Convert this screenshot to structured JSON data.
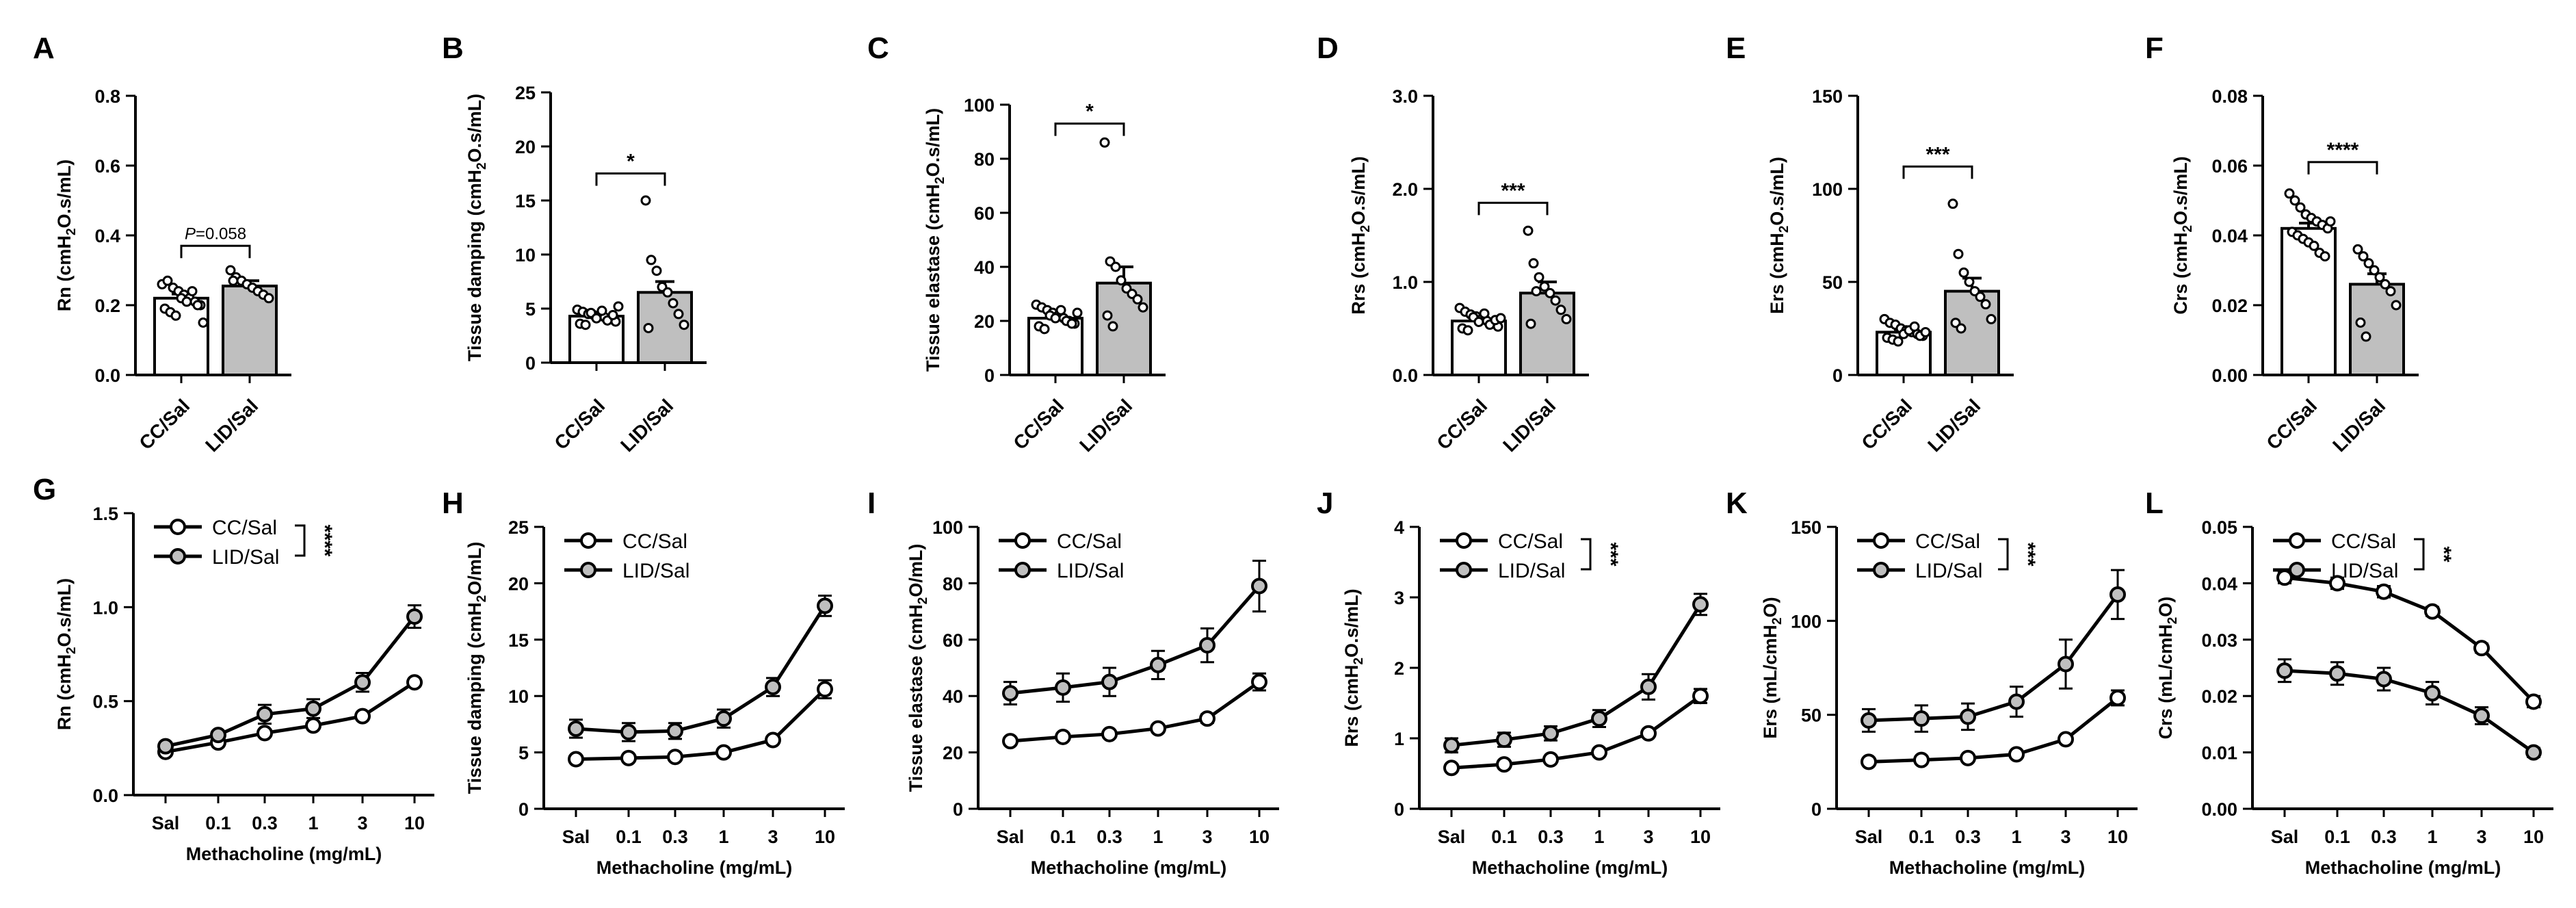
{
  "chart_data": [
    {
      "type": "bar",
      "panel": "A",
      "ylabel": "Rn (cmH2O.s/mL)",
      "ylim": [
        0,
        0.8
      ],
      "ticks": [
        "0.0",
        "0.2",
        "0.4",
        "0.6",
        "0.8"
      ],
      "categories": [
        "CC/Sal",
        "LID/Sal"
      ],
      "values": [
        0.22,
        0.255
      ],
      "sem": [
        0.012,
        0.015
      ],
      "fills": [
        "#ffffff",
        "#bfbfbf"
      ],
      "points": [
        [
          0.26,
          0.27,
          0.25,
          0.24,
          0.23,
          0.22,
          0.21,
          0.2,
          0.19,
          0.18,
          0.17,
          0.22,
          0.21,
          0.24,
          0.2,
          0.15
        ],
        [
          0.3,
          0.28,
          0.27,
          0.26,
          0.25,
          0.24,
          0.23,
          0.22,
          0.27
        ]
      ],
      "annotation": {
        "label": "P",
        "value_text": "=0.058",
        "level": 0.37
      }
    },
    {
      "type": "bar",
      "panel": "B",
      "ylabel": "Tissue damping (cmH2O.s/mL)",
      "ylim": [
        0,
        25
      ],
      "ticks": [
        "0",
        "5",
        "10",
        "15",
        "20",
        "25"
      ],
      "categories": [
        "CC/Sal",
        "LID/Sal"
      ],
      "values": [
        4.3,
        6.5
      ],
      "sem": [
        0.2,
        1.0
      ],
      "fills": [
        "#ffffff",
        "#bfbfbf"
      ],
      "points": [
        [
          4.9,
          4.7,
          4.5,
          4.4,
          4.3,
          4.2,
          4.0,
          3.8,
          3.6,
          3.5,
          4.6,
          4.1,
          4.8,
          3.9,
          4.4,
          5.2
        ],
        [
          15.0,
          9.5,
          8.5,
          7.0,
          6.5,
          5.5,
          4.5,
          3.5,
          3.2
        ]
      ],
      "annotation": {
        "label": "*",
        "level": 17.5
      }
    },
    {
      "type": "bar",
      "panel": "C",
      "ylabel": "Tissue elastase (cmH2O.s/mL)",
      "ylim": [
        0,
        100
      ],
      "ticks": [
        "0",
        "20",
        "40",
        "60",
        "80",
        "100"
      ],
      "categories": [
        "CC/Sal",
        "LID/Sal"
      ],
      "values": [
        21,
        34
      ],
      "sem": [
        1,
        6
      ],
      "fills": [
        "#ffffff",
        "#bfbfbf"
      ],
      "points": [
        [
          26,
          25,
          24,
          23,
          22,
          21,
          20,
          19,
          18,
          17,
          22,
          21,
          24,
          20,
          19,
          23
        ],
        [
          86,
          42,
          40,
          35,
          32,
          30,
          28,
          25,
          22,
          18
        ]
      ],
      "annotation": {
        "label": "*",
        "level": 93
      }
    },
    {
      "type": "bar",
      "panel": "D",
      "ylabel": "Rrs (cmH2O.s/mL)",
      "ylim": [
        0,
        3.0
      ],
      "ticks": [
        "0.0",
        "1.0",
        "2.0",
        "3.0"
      ],
      "categories": [
        "CC/Sal",
        "LID/Sal"
      ],
      "values": [
        0.58,
        0.88
      ],
      "sem": [
        0.03,
        0.12
      ],
      "fills": [
        "#ffffff",
        "#bfbfbf"
      ],
      "points": [
        [
          0.72,
          0.68,
          0.65,
          0.63,
          0.6,
          0.58,
          0.55,
          0.52,
          0.5,
          0.48,
          0.62,
          0.57,
          0.66,
          0.54,
          0.59,
          0.61
        ],
        [
          1.55,
          1.2,
          1.05,
          0.95,
          0.88,
          0.8,
          0.7,
          0.6,
          0.55,
          0.9
        ]
      ],
      "annotation": {
        "label": "***",
        "level": 1.85
      }
    },
    {
      "type": "bar",
      "panel": "E",
      "ylabel": "Ers (cmH2O.s/mL)",
      "ylim": [
        0,
        150
      ],
      "ticks": [
        "0",
        "50",
        "100",
        "150"
      ],
      "categories": [
        "CC/Sal",
        "LID/Sal"
      ],
      "values": [
        23,
        45
      ],
      "sem": [
        1.5,
        7
      ],
      "fills": [
        "#ffffff",
        "#bfbfbf"
      ],
      "points": [
        [
          30,
          28,
          27,
          25,
          24,
          23,
          22,
          21,
          20,
          19,
          18,
          22,
          24,
          26,
          21,
          23
        ],
        [
          92,
          65,
          55,
          50,
          45,
          42,
          38,
          30,
          28,
          25
        ]
      ],
      "annotation": {
        "label": "***",
        "level": 112
      }
    },
    {
      "type": "bar",
      "panel": "F",
      "ylabel": "Crs (cmH2O.s/mL)",
      "ylim": [
        0,
        0.08
      ],
      "ticks": [
        "0.00",
        "0.02",
        "0.04",
        "0.06",
        "0.08"
      ],
      "categories": [
        "CC/Sal",
        "LID/Sal"
      ],
      "values": [
        0.042,
        0.026
      ],
      "sem": [
        0.0015,
        0.003
      ],
      "fills": [
        "#ffffff",
        "#bfbfbf"
      ],
      "points": [
        [
          0.052,
          0.05,
          0.048,
          0.046,
          0.045,
          0.044,
          0.043,
          0.042,
          0.041,
          0.04,
          0.039,
          0.038,
          0.037,
          0.035,
          0.034,
          0.044
        ],
        [
          0.036,
          0.034,
          0.032,
          0.03,
          0.028,
          0.026,
          0.024,
          0.02,
          0.015,
          0.011
        ]
      ],
      "annotation": {
        "label": "****",
        "level": 0.061
      }
    },
    {
      "type": "line",
      "panel": "G",
      "ylabel": "Rn (cmH2O.s/mL)",
      "xlabel": "Methacholine (mg/mL)",
      "ylim": [
        0,
        1.5
      ],
      "ticks": [
        "0.0",
        "0.5",
        "1.0",
        "1.5"
      ],
      "x": [
        "Sal",
        "0.1",
        "0.3",
        "1",
        "3",
        "10"
      ],
      "series": [
        {
          "name": "CC/Sal",
          "values": [
            0.23,
            0.28,
            0.33,
            0.37,
            0.42,
            0.6
          ],
          "err": [
            0.01,
            0.01,
            0.01,
            0.01,
            0.015,
            0.02
          ]
        },
        {
          "name": "LID/Sal",
          "values": [
            0.26,
            0.32,
            0.43,
            0.46,
            0.6,
            0.95
          ],
          "err": [
            0.02,
            0.02,
            0.05,
            0.05,
            0.05,
            0.06
          ]
        }
      ],
      "significance": "****"
    },
    {
      "type": "line",
      "panel": "H",
      "ylabel": "Tissue damping (cmH2O/mL)",
      "xlabel": "Methacholine (mg/mL)",
      "ylim": [
        0,
        25
      ],
      "ticks": [
        "0",
        "5",
        "10",
        "15",
        "20",
        "25"
      ],
      "x": [
        "Sal",
        "0.1",
        "0.3",
        "1",
        "3",
        "10"
      ],
      "series": [
        {
          "name": "CC/Sal",
          "values": [
            4.4,
            4.5,
            4.6,
            5.0,
            6.1,
            10.6
          ],
          "err": [
            0.2,
            0.2,
            0.2,
            0.2,
            0.3,
            0.8
          ]
        },
        {
          "name": "LID/Sal",
          "values": [
            7.1,
            6.8,
            6.9,
            8.0,
            10.8,
            18.0
          ],
          "err": [
            0.8,
            0.8,
            0.7,
            0.8,
            0.8,
            0.9
          ]
        }
      ],
      "significance": ""
    },
    {
      "type": "line",
      "panel": "I",
      "ylabel": "Tissue elastase (cmH2O/mL)",
      "xlabel": "Methacholine (mg/mL)",
      "ylim": [
        0,
        100
      ],
      "ticks": [
        "0",
        "20",
        "40",
        "60",
        "80",
        "100"
      ],
      "x": [
        "Sal",
        "0.1",
        "0.3",
        "1",
        "3",
        "10"
      ],
      "series": [
        {
          "name": "CC/Sal",
          "values": [
            24,
            25.5,
            26.5,
            28.5,
            32,
            45
          ],
          "err": [
            1,
            1,
            1,
            1,
            1.5,
            3
          ]
        },
        {
          "name": "LID/Sal",
          "values": [
            41,
            43,
            45,
            51,
            58,
            79
          ],
          "err": [
            4,
            5,
            5,
            5,
            6,
            9
          ]
        }
      ],
      "significance": ""
    },
    {
      "type": "line",
      "panel": "J",
      "ylabel": "Rrs (cmH2O.s/mL)",
      "xlabel": "Methacholine (mg/mL)",
      "ylim": [
        0,
        4
      ],
      "ticks": [
        "0",
        "1",
        "2",
        "3",
        "4"
      ],
      "x": [
        "Sal",
        "0.1",
        "0.3",
        "1",
        "3",
        "10"
      ],
      "series": [
        {
          "name": "CC/Sal",
          "values": [
            0.58,
            0.63,
            0.7,
            0.8,
            1.07,
            1.6
          ],
          "err": [
            0.03,
            0.03,
            0.03,
            0.04,
            0.05,
            0.1
          ]
        },
        {
          "name": "LID/Sal",
          "values": [
            0.9,
            0.98,
            1.07,
            1.28,
            1.73,
            2.9
          ],
          "err": [
            0.1,
            0.1,
            0.1,
            0.12,
            0.18,
            0.15
          ]
        }
      ],
      "significance": "***"
    },
    {
      "type": "line",
      "panel": "K",
      "ylabel": "Ers (mL/cmH2O)",
      "xlabel": "Methacholine (mg/mL)",
      "ylim": [
        0,
        150
      ],
      "ticks": [
        "0",
        "50",
        "100",
        "150"
      ],
      "x": [
        "Sal",
        "0.1",
        "0.3",
        "1",
        "3",
        "10"
      ],
      "series": [
        {
          "name": "CC/Sal",
          "values": [
            25,
            26,
            27,
            29,
            37,
            59
          ],
          "err": [
            1,
            1,
            1,
            1,
            2,
            4
          ]
        },
        {
          "name": "LID/Sal",
          "values": [
            47,
            48,
            49,
            57,
            77,
            114
          ],
          "err": [
            6,
            7,
            7,
            8,
            13,
            13
          ]
        }
      ],
      "significance": "***"
    },
    {
      "type": "line",
      "panel": "L",
      "ylabel": "Crs (mL/cmH2O)",
      "xlabel": "Methacholine (mg/mL)",
      "ylim": [
        0,
        0.05
      ],
      "ticks": [
        "0.00",
        "0.01",
        "0.02",
        "0.03",
        "0.04",
        "0.05"
      ],
      "x": [
        "Sal",
        "0.1",
        "0.3",
        "1",
        "3",
        "10"
      ],
      "series": [
        {
          "name": "CC/Sal",
          "values": [
            0.041,
            0.04,
            0.0385,
            0.035,
            0.0285,
            0.019
          ],
          "err": [
            0.001,
            0.001,
            0.001,
            0.0008,
            0.0008,
            0.001
          ]
        },
        {
          "name": "LID/Sal",
          "values": [
            0.0245,
            0.024,
            0.023,
            0.0205,
            0.0165,
            0.01
          ],
          "err": [
            0.002,
            0.002,
            0.002,
            0.002,
            0.0015,
            0.0008
          ]
        }
      ],
      "significance": "**"
    }
  ]
}
